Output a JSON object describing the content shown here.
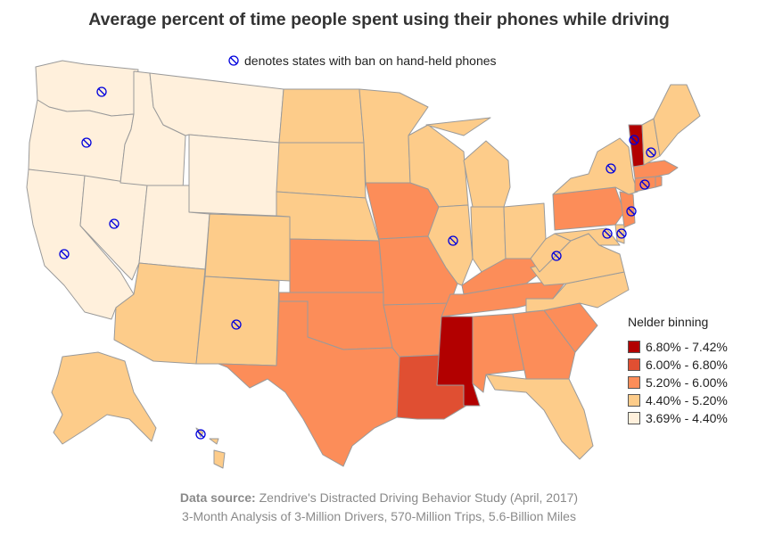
{
  "title": "Average percent of time people spent using their phones while driving",
  "ban_note": "denotes states with ban on hand-held phones",
  "legend": {
    "title": "Nelder binning",
    "bins": [
      {
        "label": "6.80% - 7.42%",
        "color": "#b20000"
      },
      {
        "label": "6.00% - 6.80%",
        "color": "#e04f32"
      },
      {
        "label": "5.20% - 6.00%",
        "color": "#fc8d59"
      },
      {
        "label": "4.40% - 5.20%",
        "color": "#fdcc8a"
      },
      {
        "label": "3.69% - 4.40%",
        "color": "#fff0dc"
      }
    ]
  },
  "footer": {
    "source_label": "Data source:",
    "source_text": " Zendrive's Distracted Driving Behavior Study (April, 2017)",
    "line2": "3-Month Analysis of 3-Million Drivers, 570-Million Trips, 5.6-Billion Miles"
  },
  "states": [
    {
      "code": "WA",
      "bin": 4,
      "ban": true
    },
    {
      "code": "OR",
      "bin": 4,
      "ban": true
    },
    {
      "code": "CA",
      "bin": 4,
      "ban": true
    },
    {
      "code": "NV",
      "bin": 4,
      "ban": true
    },
    {
      "code": "ID",
      "bin": 4,
      "ban": false
    },
    {
      "code": "MT",
      "bin": 4,
      "ban": false
    },
    {
      "code": "WY",
      "bin": 4,
      "ban": false
    },
    {
      "code": "UT",
      "bin": 4,
      "ban": false
    },
    {
      "code": "AZ",
      "bin": 3,
      "ban": false
    },
    {
      "code": "CO",
      "bin": 3,
      "ban": false
    },
    {
      "code": "NM",
      "bin": 3,
      "ban": true
    },
    {
      "code": "ND",
      "bin": 3,
      "ban": false
    },
    {
      "code": "SD",
      "bin": 3,
      "ban": false
    },
    {
      "code": "NE",
      "bin": 3,
      "ban": false
    },
    {
      "code": "KS",
      "bin": 2,
      "ban": false
    },
    {
      "code": "OK",
      "bin": 2,
      "ban": false
    },
    {
      "code": "TX",
      "bin": 2,
      "ban": false
    },
    {
      "code": "MN",
      "bin": 3,
      "ban": false
    },
    {
      "code": "IA",
      "bin": 2,
      "ban": false
    },
    {
      "code": "MO",
      "bin": 2,
      "ban": false
    },
    {
      "code": "AR",
      "bin": 2,
      "ban": false
    },
    {
      "code": "LA",
      "bin": 1,
      "ban": false
    },
    {
      "code": "WI",
      "bin": 3,
      "ban": false
    },
    {
      "code": "IL",
      "bin": 3,
      "ban": true
    },
    {
      "code": "MI",
      "bin": 3,
      "ban": false
    },
    {
      "code": "IN",
      "bin": 3,
      "ban": false
    },
    {
      "code": "OH",
      "bin": 3,
      "ban": false
    },
    {
      "code": "KY",
      "bin": 2,
      "ban": false
    },
    {
      "code": "TN",
      "bin": 2,
      "ban": false
    },
    {
      "code": "MS",
      "bin": 0,
      "ban": false
    },
    {
      "code": "AL",
      "bin": 2,
      "ban": false
    },
    {
      "code": "GA",
      "bin": 2,
      "ban": false
    },
    {
      "code": "FL",
      "bin": 3,
      "ban": false
    },
    {
      "code": "SC",
      "bin": 2,
      "ban": false
    },
    {
      "code": "NC",
      "bin": 3,
      "ban": false
    },
    {
      "code": "VA",
      "bin": 3,
      "ban": false
    },
    {
      "code": "WV",
      "bin": 3,
      "ban": true
    },
    {
      "code": "MD",
      "bin": 3,
      "ban": true
    },
    {
      "code": "DE",
      "bin": 3,
      "ban": true
    },
    {
      "code": "PA",
      "bin": 2,
      "ban": false
    },
    {
      "code": "NJ",
      "bin": 2,
      "ban": true
    },
    {
      "code": "NY",
      "bin": 3,
      "ban": true
    },
    {
      "code": "CT",
      "bin": 2,
      "ban": true
    },
    {
      "code": "RI",
      "bin": 2,
      "ban": false
    },
    {
      "code": "MA",
      "bin": 2,
      "ban": false
    },
    {
      "code": "VT",
      "bin": 0,
      "ban": true
    },
    {
      "code": "NH",
      "bin": 3,
      "ban": true
    },
    {
      "code": "ME",
      "bin": 3,
      "ban": false
    },
    {
      "code": "AK",
      "bin": 3,
      "ban": false
    },
    {
      "code": "HI",
      "bin": 3,
      "ban": true
    }
  ]
}
